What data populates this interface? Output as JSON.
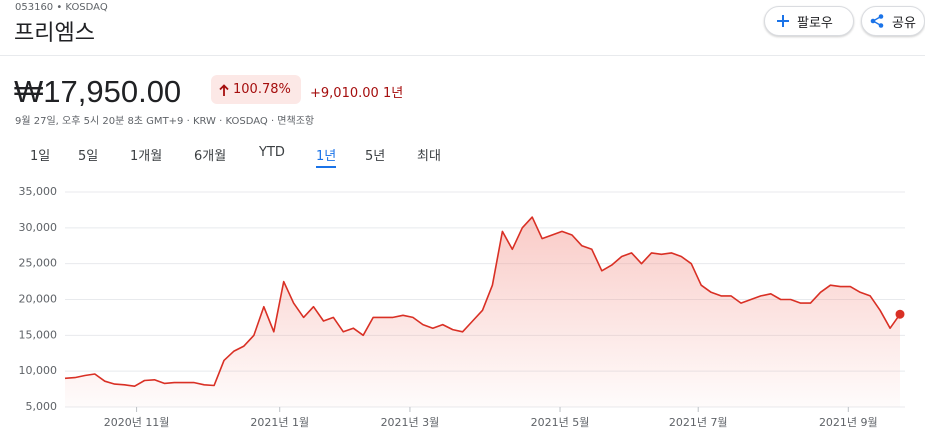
{
  "header": {
    "ticker": "053160 • KOSDAQ",
    "title": "프리엠스",
    "buttons": [
      "팔로우",
      "공유"
    ]
  },
  "quote": {
    "price": "₩17,950.00",
    "change_percent": "100.78%",
    "change": "+9,010.00",
    "period": "1년",
    "info": "9월 27일, 오후 5시 20분 8초 GMT+9 · KRW · KOSDAQ · 면책조항"
  },
  "tabs": [
    "1일",
    "5일",
    "1개월",
    "6개월",
    "YTD",
    "1년",
    "5년",
    "최대"
  ],
  "selected_tab": 5,
  "chart_data": {
    "type": "line",
    "color": "#d93025",
    "grid": true,
    "values": [
      9000,
      9100,
      9400,
      9600,
      8600,
      8200,
      8100,
      7900,
      8700,
      8800,
      8300,
      8400,
      8400,
      8400,
      8100,
      8000,
      11500,
      12800,
      13500,
      15000,
      19000,
      15500,
      22500,
      19500,
      17500,
      19000,
      17000,
      17500,
      15500,
      16000,
      15000,
      17500,
      17500,
      17500,
      17800,
      17500,
      16500,
      16000,
      16500,
      15800,
      15500,
      17000,
      18500,
      22000,
      29500,
      27000,
      30000,
      31500,
      28500,
      29000,
      29500,
      29000,
      27500,
      27000,
      24000,
      24800,
      26000,
      26500,
      25000,
      26500,
      26300,
      26500,
      26000,
      25000,
      22000,
      21000,
      20500,
      20500,
      19500,
      20000,
      20500,
      20800,
      20000,
      20000,
      19500,
      19500,
      21000,
      22000,
      21800,
      21800,
      21000,
      20500,
      18500,
      16000,
      17950
    ],
    "xlim": [
      0,
      84
    ],
    "xticks": [
      {
        "value": 7.2,
        "label": "2020년 11월"
      },
      {
        "value": 21.6,
        "label": "2021년 1월"
      },
      {
        "value": 34.7,
        "label": "2021년 3월"
      },
      {
        "value": 49.8,
        "label": "2021년 5월"
      },
      {
        "value": 63.7,
        "label": "2021년 7월"
      },
      {
        "value": 78.8,
        "label": "2021년 9월"
      }
    ],
    "ylim": [
      5000,
      35000
    ],
    "yticks": [
      {
        "value": 5000,
        "label": "5,000"
      },
      {
        "value": 10000,
        "label": "10,000"
      },
      {
        "value": 15000,
        "label": "15,000"
      },
      {
        "value": 20000,
        "label": "20,000"
      },
      {
        "value": 25000,
        "label": "25,000"
      },
      {
        "value": 30000,
        "label": "30,000"
      },
      {
        "value": 35000,
        "label": "35,000"
      }
    ]
  }
}
